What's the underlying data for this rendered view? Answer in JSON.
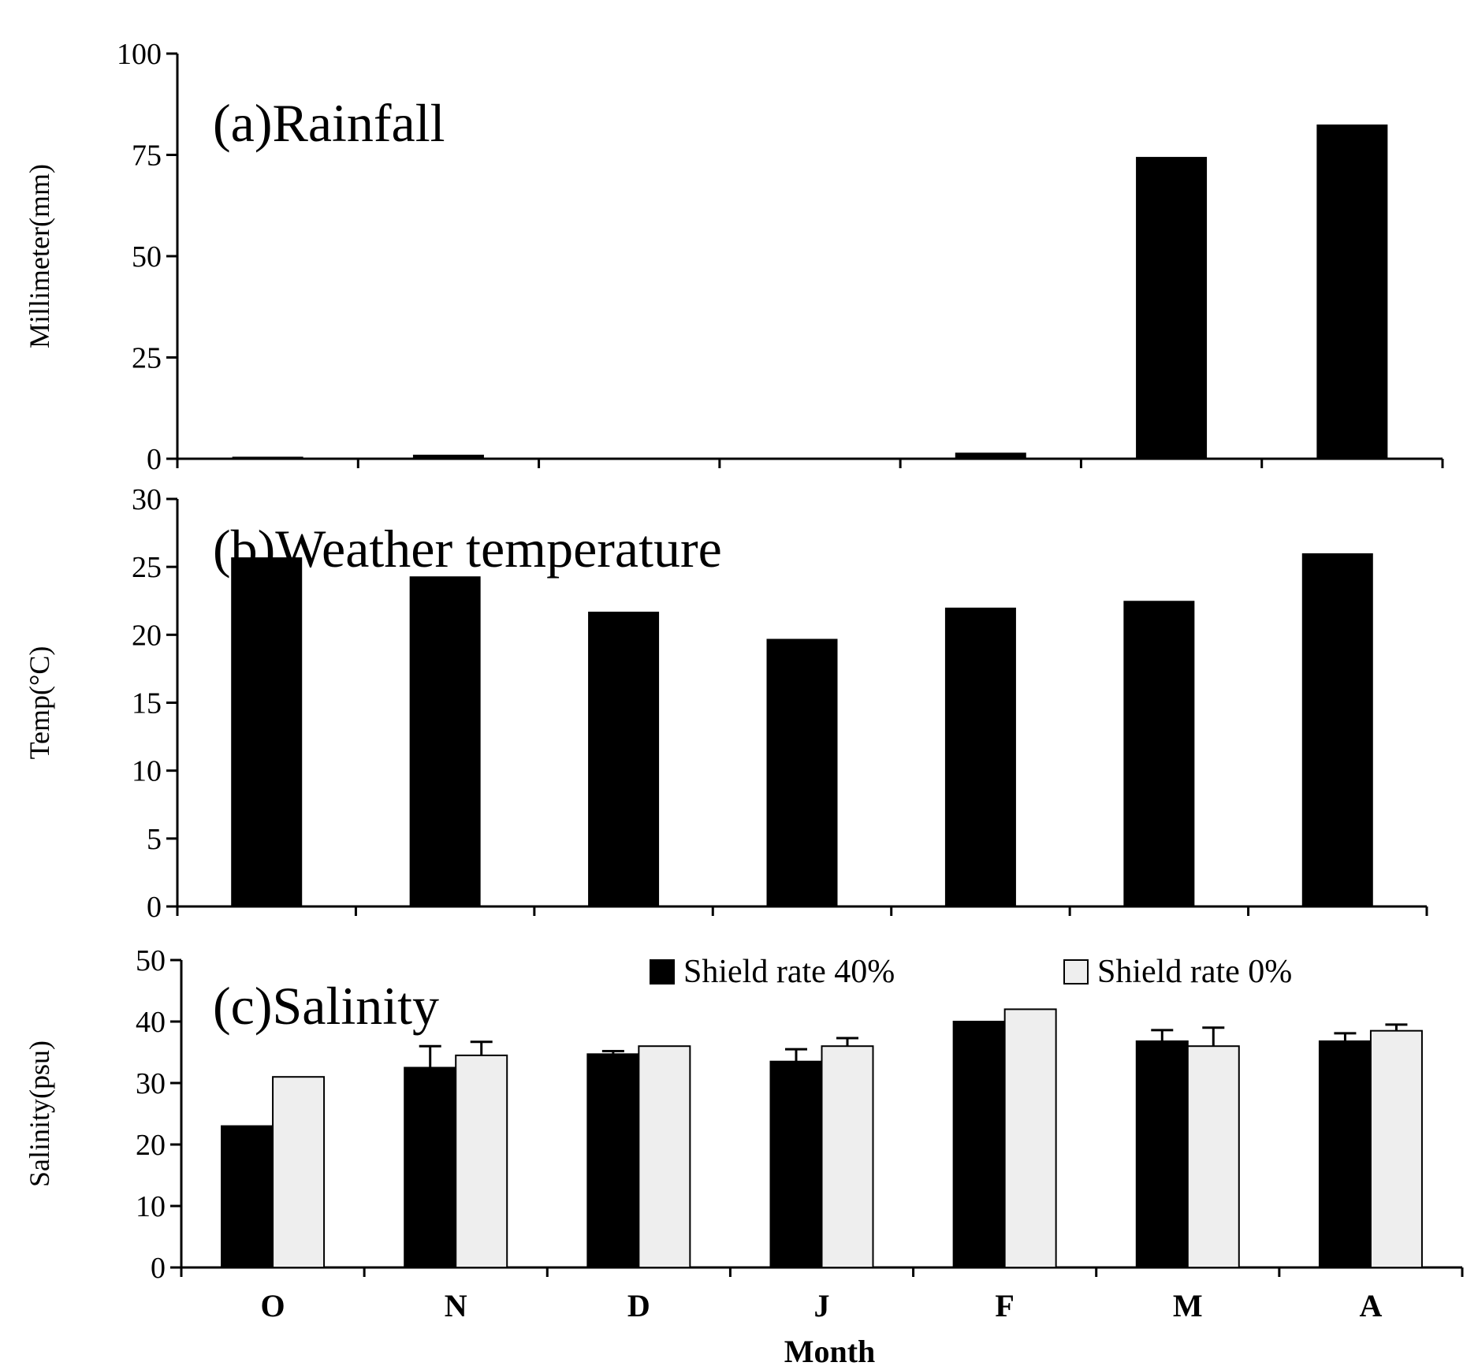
{
  "chart_data": [
    {
      "type": "bar",
      "panel": "a",
      "title": "(a)Rainfall",
      "ylabel": "Millimeter(mm)",
      "xlabel": "",
      "ylim": [
        0,
        100
      ],
      "yticks": [
        0,
        25,
        50,
        75,
        100
      ],
      "categories": [
        "O",
        "N",
        "D",
        "J",
        "F",
        "M",
        "A"
      ],
      "series": [
        {
          "name": "Rainfall",
          "color": "#000000",
          "values": [
            0.5,
            1.0,
            0,
            0,
            1.5,
            74.5,
            82.5
          ]
        }
      ]
    },
    {
      "type": "bar",
      "panel": "b",
      "title": "(b)Weather temperature",
      "ylabel": "Temp(°C)",
      "xlabel": "",
      "ylim": [
        0,
        30
      ],
      "yticks": [
        0,
        5,
        10,
        15,
        20,
        25,
        30
      ],
      "categories": [
        "O",
        "N",
        "D",
        "J",
        "F",
        "M",
        "A"
      ],
      "series": [
        {
          "name": "Temperature",
          "color": "#000000",
          "values": [
            25.7,
            24.3,
            21.7,
            19.7,
            22.0,
            22.5,
            26.0
          ]
        }
      ]
    },
    {
      "type": "bar",
      "panel": "c",
      "title": "(c)Salinity",
      "ylabel": "Salinity(psu)",
      "xlabel": "Month",
      "ylim": [
        0,
        50
      ],
      "yticks": [
        0,
        10,
        20,
        30,
        40,
        50
      ],
      "categories": [
        "O",
        "N",
        "D",
        "J",
        "F",
        "M",
        "A"
      ],
      "legend_position": "top-right",
      "series": [
        {
          "name": "Shield rate 40%",
          "color": "#000000",
          "values": [
            23.0,
            32.5,
            34.7,
            33.5,
            40.0,
            36.8,
            36.8
          ],
          "errors": [
            0,
            3.5,
            0.5,
            2.0,
            0,
            1.8,
            1.3
          ]
        },
        {
          "name": "Shield rate 0%",
          "color": "#eeeeee",
          "values": [
            31.0,
            34.5,
            36.0,
            36.0,
            42.0,
            36.0,
            38.5
          ],
          "errors": [
            0,
            2.2,
            0,
            1.3,
            0,
            3.0,
            1.0
          ]
        }
      ]
    }
  ]
}
